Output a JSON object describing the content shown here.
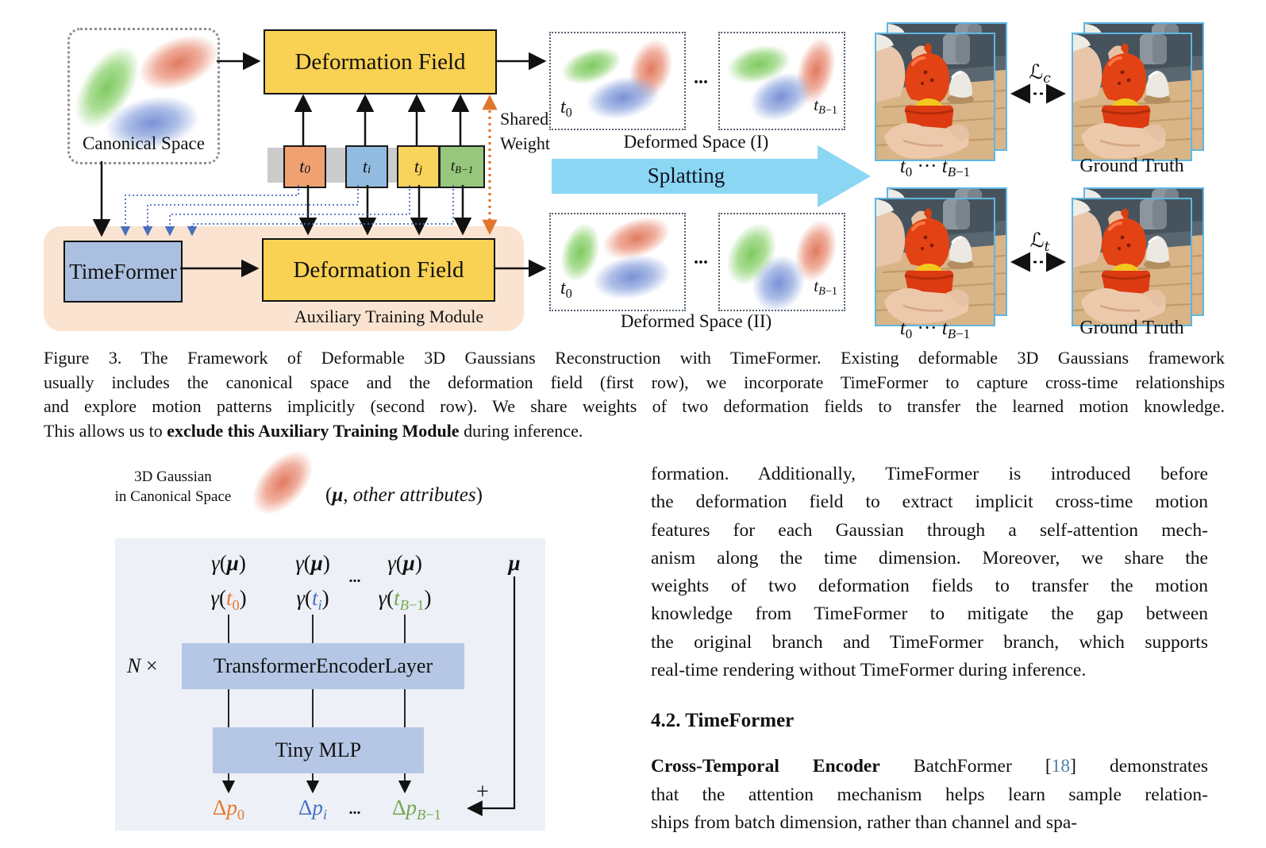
{
  "colors": {
    "accent-yellow": "#f9d153",
    "box-blue": "#abc0e1",
    "panel-blue": "#b5c7e5",
    "panel-bg": "#edf0f6",
    "peach": "#fae4d1",
    "strip-gray": "#cbcbcb",
    "token-orange": "#f0a172",
    "token-blue": "#92bcdf",
    "token-yellow": "#f8d45c",
    "token-green": "#97c77d",
    "splat-blue": "#8bd7f3",
    "photo-border": "#5fb6e3",
    "dotted-blue": "#4a6fbe",
    "dotted-orange": "#e0762d",
    "dp-orange": "#e8762d",
    "dp-blue": "#4472c4",
    "dp-green": "#74a64e",
    "citation": "#4f81a8"
  },
  "figure3": {
    "canonical_label": "Canonical Space",
    "deformation_field_label_1": "Deformation Field",
    "deformation_field_label_2": "Deformation Field",
    "timeformer_label": "TimeFormer",
    "auxiliary_label": "Auxiliary Training Module",
    "shared_weight_line1": "Shared",
    "shared_weight_line2": "Weight",
    "splatting_label": "Splatting",
    "deformed_space_1_label": "Deformed Space (I)",
    "deformed_space_2_label": "Deformed Space (II)",
    "dots": "...",
    "token_t0_html": "<i>t</i><sub>0</sub>",
    "token_ti_html": "<i>t</i><sub><i>i</i></sub>",
    "token_tj_html": "<i>t</i><sub><i>j</i></sub>",
    "token_tB1_html": "<i>t</i><sub><i>B</i>−1</sub>",
    "t0_html": "<i>t</i><sub>0</sub>",
    "tB1_html": "<i>t</i><sub><i>B</i>−1</sub>",
    "range_html": "<i>t</i><sub>0</sub> ··· <i>t</i><sub><i>B</i>−1</sub>",
    "ground_truth_label": "Ground Truth",
    "loss_c_html": "ℒ<sub><i>c</i></sub>",
    "loss_t_html": "ℒ<sub><i>t</i></sub>"
  },
  "caption": {
    "lines": [
      "Figure 3. The Framework of Deformable 3D Gaussians Reconstruction with TimeFormer. Existing deformable 3D Gaussians framework",
      "usually includes the canonical space and the deformation field (first row), we incorporate TimeFormer to capture cross-time relationships",
      "and explore motion patterns implicitly (second row). We share weights of two deformation fields to transfer the learned motion knowledge.",
      "This allows us to <b>exclude this Auxiliary Training Module</b> during inference."
    ]
  },
  "figure4": {
    "gaussian_line1": "3D Gaussian",
    "gaussian_line2": "in Canonical Space",
    "attributes_html": "(<b><i>μ</i></b>, <i>other attributes</i>)",
    "gamma_mu_html": "<i>γ</i>(<b><i>μ</i></b>)",
    "mu_html": "<b><i>μ</i></b>",
    "gamma_t0_html": "<i>γ</i>(<span class=\"c-orange\"><i>t</i><sub>0</sub></span>)",
    "gamma_ti_html": "<i>γ</i>(<span class=\"c-blue\"><i>t</i><sub><i>i</i></sub></span>)",
    "gamma_tB1_html": "<i>γ</i>(<span class=\"c-green\"><i>t</i><sub><i>B</i>−1</sub></span>)",
    "dots_top": "...",
    "dots_bottom": "...",
    "n_times_html": "<i>N</i> ×",
    "encoder_label": "TransformerEncoderLayer",
    "mlp_label": "Tiny MLP",
    "dp0_html": "Δ<i>p</i><sub>0</sub>",
    "dpi_html": "Δ<i>p</i><sub><i>i</i></sub>",
    "dpB1_html": "Δ<i>p</i><sub><i>B</i>−1</sub>",
    "plus_label": "+"
  },
  "column": {
    "para1_lines": [
      "formation.  Additionally, TimeFormer is introduced before",
      "the deformation field to extract implicit cross-time motion",
      "features for each Gaussian through a self-attention mech-",
      "anism along the time dimension.  Moreover, we share the",
      "weights of two deformation fields to transfer the motion",
      "knowledge from TimeFormer to mitigate the gap between",
      "the original branch and TimeFormer branch, which supports",
      "real-time rendering without TimeFormer during inference."
    ],
    "heading": "4.2. TimeFormer",
    "para2_lines": [
      "<b>Cross-Temporal Encoder</b> BatchFormer [<span class=\"cite\" data-name=\"citation-18\" data-interactable=\"true\">18</span>] demonstrates",
      "that the attention mechanism helps learn sample relation-",
      "ships from batch dimension, rather than channel and spa-"
    ]
  }
}
